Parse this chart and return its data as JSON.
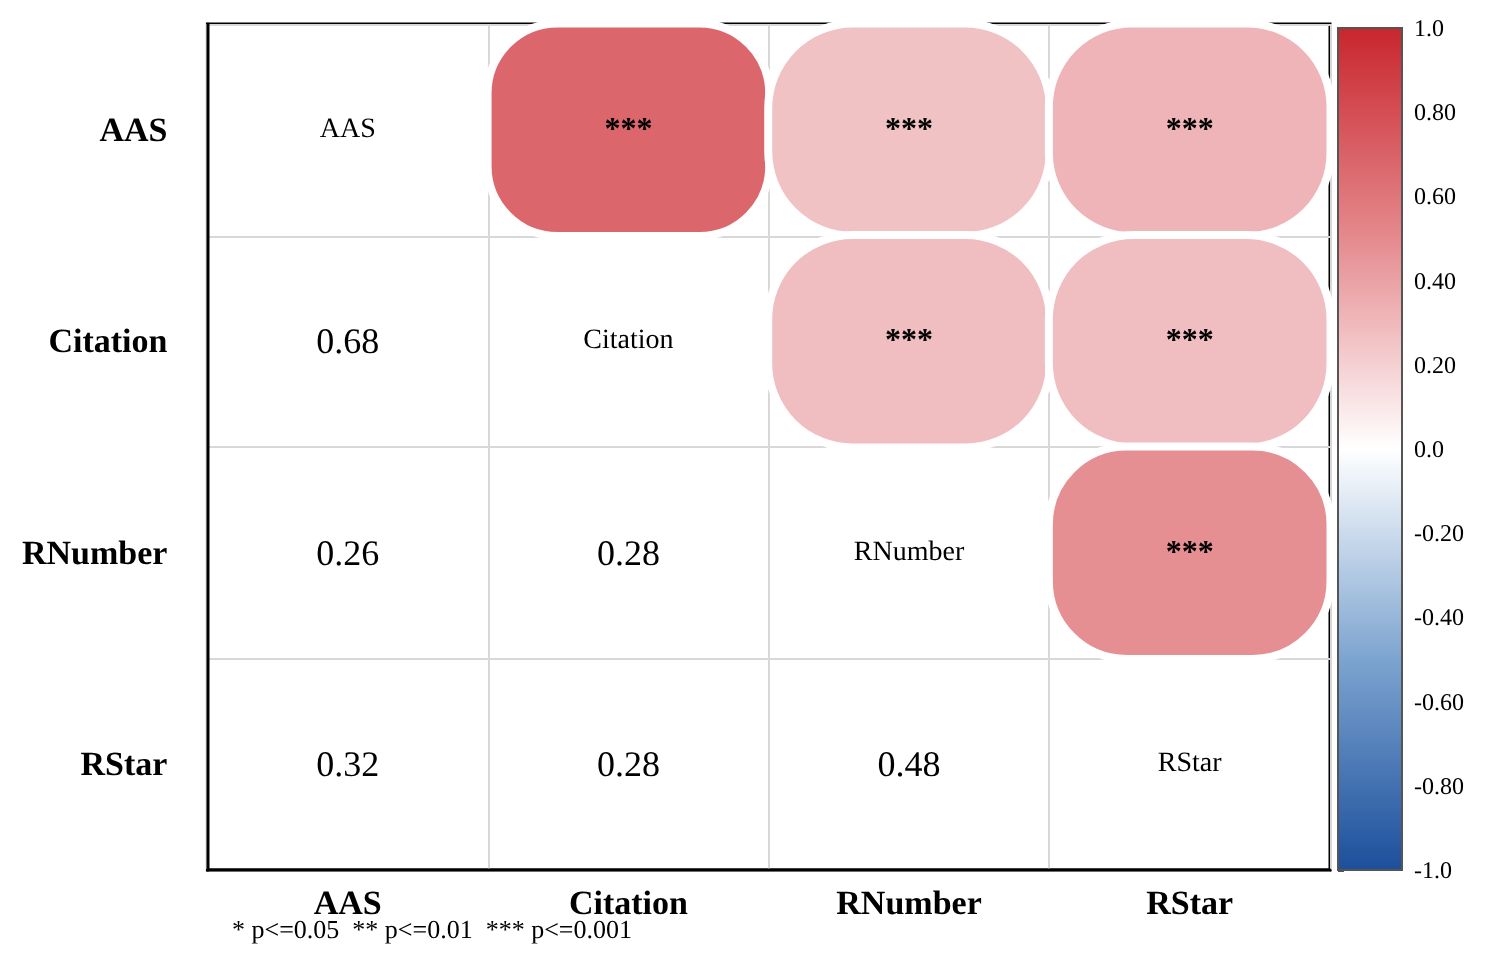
{
  "chart_data": {
    "type": "heatmap",
    "categories": [
      "AAS",
      "Citation",
      "RNumber",
      "RStar"
    ],
    "y_categories": [
      "AAS",
      "Citation",
      "RNumber",
      "RStar"
    ],
    "cells": [
      [
        null,
        0.68,
        0.26,
        0.32
      ],
      [
        null,
        null,
        0.28,
        0.28
      ],
      [
        null,
        null,
        null,
        0.48
      ],
      [
        null,
        null,
        null,
        null
      ]
    ],
    "cell_labels": [
      [
        "AAS",
        "***",
        "***",
        "***"
      ],
      [
        "0.68",
        "Citation",
        "***",
        "***"
      ],
      [
        "0.26",
        "0.28",
        "RNumber",
        "***"
      ],
      [
        "0.32",
        "0.28",
        "0.48",
        "RStar"
      ]
    ],
    "clim": [
      -1,
      1
    ],
    "cticks": [
      {
        "value": 1,
        "label": "1.0"
      },
      {
        "value": 0.8,
        "label": "0.80"
      },
      {
        "value": 0.6,
        "label": "0.60"
      },
      {
        "value": 0.4,
        "label": "0.40"
      },
      {
        "value": 0.2,
        "label": "0.20"
      },
      {
        "value": 0,
        "label": "0.0"
      },
      {
        "value": -0.2,
        "label": "-0.20"
      },
      {
        "value": -0.4,
        "label": "-0.40"
      },
      {
        "value": -0.6,
        "label": "-0.60"
      },
      {
        "value": -0.8,
        "label": "-0.80"
      },
      {
        "value": -1,
        "label": "-1.0"
      }
    ],
    "grid": true,
    "annotations": [
      "* p<=0.05  ** p<=0.01  *** p<=0.001"
    ]
  }
}
